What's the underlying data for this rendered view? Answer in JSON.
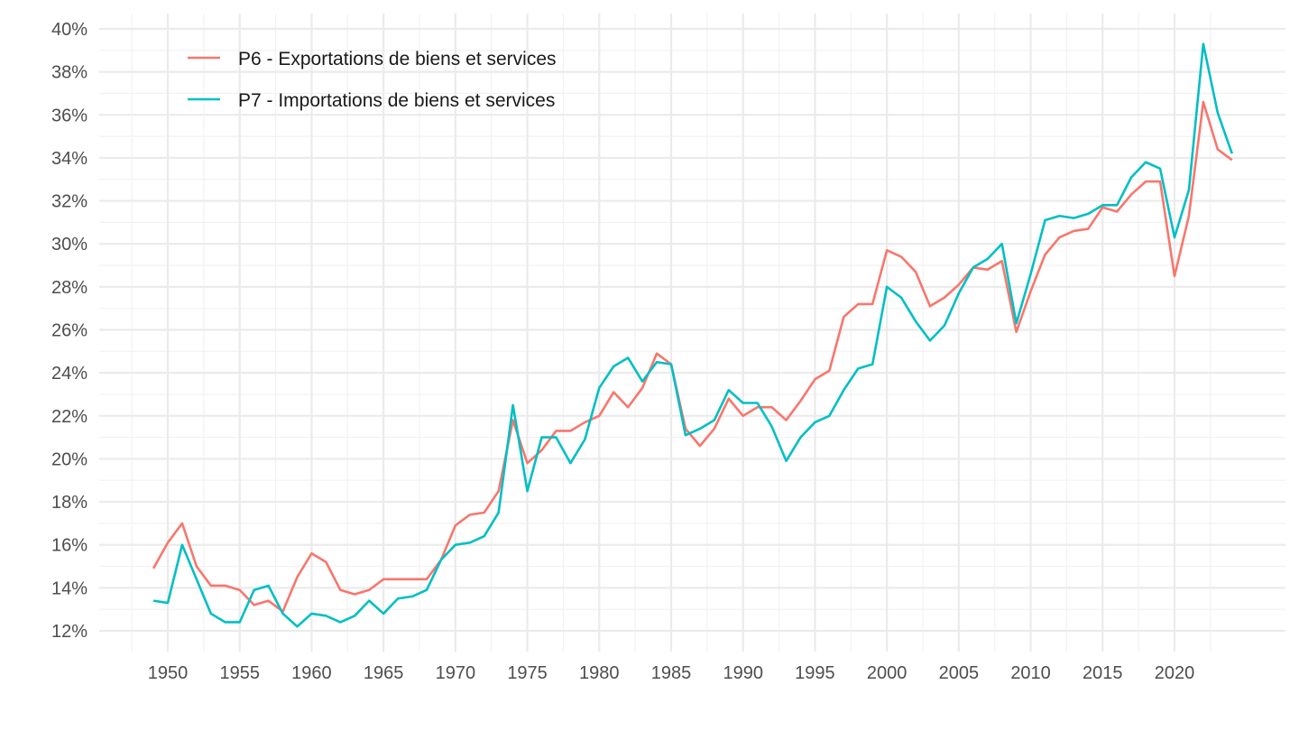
{
  "chart_data": {
    "type": "line",
    "title": "",
    "xlabel": "",
    "ylabel": "",
    "xlim": [
      1949,
      2024
    ],
    "ylim": [
      12,
      40
    ],
    "y_ticks": [
      12,
      14,
      16,
      18,
      20,
      22,
      24,
      26,
      28,
      30,
      32,
      34,
      36,
      38,
      40
    ],
    "y_tick_labels": [
      "12%",
      "14%",
      "16%",
      "18%",
      "20%",
      "22%",
      "24%",
      "26%",
      "28%",
      "30%",
      "32%",
      "34%",
      "36%",
      "38%",
      "40%"
    ],
    "x_ticks": [
      1950,
      1955,
      1960,
      1965,
      1970,
      1975,
      1980,
      1985,
      1990,
      1995,
      2000,
      2005,
      2010,
      2015,
      2020
    ],
    "x_tick_labels": [
      "1950",
      "1955",
      "1960",
      "1965",
      "1970",
      "1975",
      "1980",
      "1985",
      "1990",
      "1995",
      "2000",
      "2005",
      "2010",
      "2015",
      "2020"
    ],
    "grid": true,
    "legend_position": "top-left",
    "x": [
      1949,
      1950,
      1951,
      1952,
      1953,
      1954,
      1955,
      1956,
      1957,
      1958,
      1959,
      1960,
      1961,
      1962,
      1963,
      1964,
      1965,
      1966,
      1967,
      1968,
      1969,
      1970,
      1971,
      1972,
      1973,
      1974,
      1975,
      1976,
      1977,
      1978,
      1979,
      1980,
      1981,
      1982,
      1983,
      1984,
      1985,
      1986,
      1987,
      1988,
      1989,
      1990,
      1991,
      1992,
      1993,
      1994,
      1995,
      1996,
      1997,
      1998,
      1999,
      2000,
      2001,
      2002,
      2003,
      2004,
      2005,
      2006,
      2007,
      2008,
      2009,
      2010,
      2011,
      2012,
      2013,
      2014,
      2015,
      2016,
      2017,
      2018,
      2019,
      2020,
      2021,
      2022,
      2023,
      2024
    ],
    "series": [
      {
        "name": "P6 - Exportations de biens et services",
        "color": "#F8766D",
        "values": [
          14.9,
          16.1,
          17.0,
          15.0,
          14.1,
          14.1,
          13.9,
          13.2,
          13.4,
          12.9,
          14.5,
          15.6,
          15.2,
          13.9,
          13.7,
          13.9,
          14.4,
          14.4,
          14.4,
          14.4,
          15.3,
          16.9,
          17.4,
          17.5,
          18.5,
          21.8,
          19.8,
          20.4,
          21.3,
          21.3,
          21.7,
          22.0,
          23.1,
          22.4,
          23.3,
          24.9,
          24.4,
          21.4,
          20.6,
          21.4,
          22.8,
          22.0,
          22.4,
          22.4,
          21.8,
          22.7,
          23.7,
          24.1,
          26.6,
          27.2,
          27.2,
          29.7,
          29.4,
          28.7,
          27.1,
          27.5,
          28.1,
          28.9,
          28.8,
          29.2,
          25.9,
          27.8,
          29.5,
          30.3,
          30.6,
          30.7,
          31.7,
          31.5,
          32.3,
          32.9,
          32.9,
          28.5,
          31.3,
          36.6,
          34.4,
          33.9
        ]
      },
      {
        "name": "P7 - Importations de biens et services",
        "color": "#00BFC4",
        "values": [
          13.4,
          13.3,
          16.0,
          14.4,
          12.8,
          12.4,
          12.4,
          13.9,
          14.1,
          12.8,
          12.2,
          12.8,
          12.7,
          12.4,
          12.7,
          13.4,
          12.8,
          13.5,
          13.6,
          13.9,
          15.3,
          16.0,
          16.1,
          16.4,
          17.5,
          22.5,
          18.5,
          21.0,
          21.0,
          19.8,
          20.9,
          23.3,
          24.3,
          24.7,
          23.6,
          24.5,
          24.4,
          21.1,
          21.4,
          21.8,
          23.2,
          22.6,
          22.6,
          21.5,
          19.9,
          21.0,
          21.7,
          22.0,
          23.2,
          24.2,
          24.4,
          28.0,
          27.5,
          26.4,
          25.5,
          26.2,
          27.7,
          28.9,
          29.3,
          30.0,
          26.3,
          28.6,
          31.1,
          31.3,
          31.2,
          31.4,
          31.8,
          31.8,
          33.1,
          33.8,
          33.5,
          30.3,
          32.5,
          39.3,
          36.1,
          34.2
        ]
      }
    ]
  }
}
